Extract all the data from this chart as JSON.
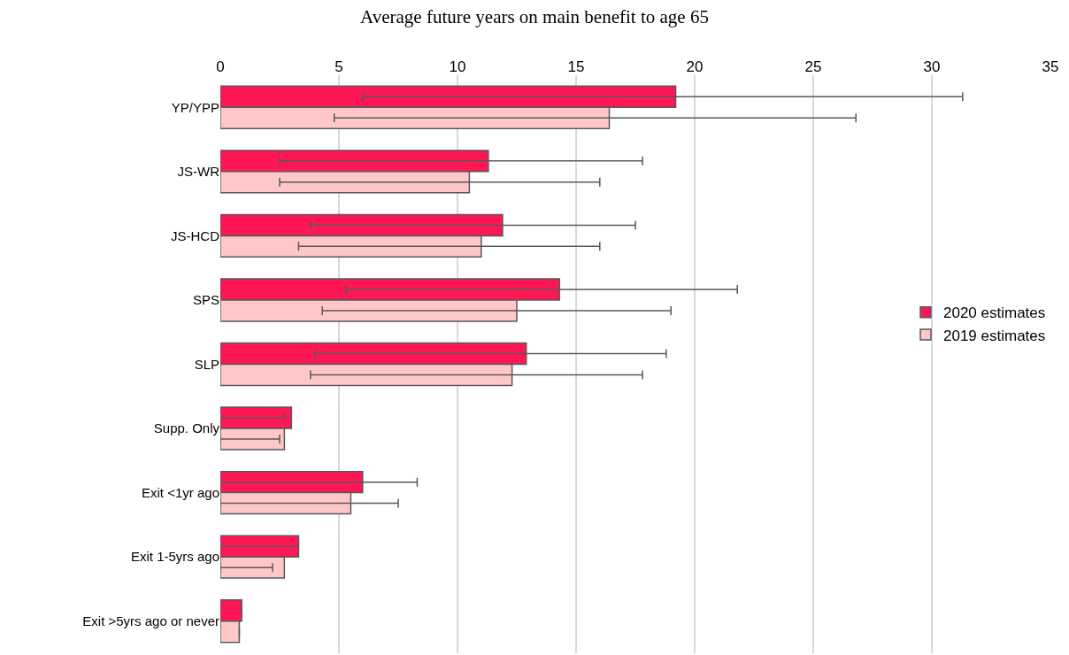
{
  "chart_data": {
    "type": "bar",
    "orientation": "horizontal",
    "title": "Average future years on main benefit to age 65",
    "categories": [
      "YP/YPP",
      "JS-WR",
      "JS-HCD",
      "SPS",
      "SLP",
      "Supp. Only",
      "Exit <1yr ago",
      "Exit 1-5yrs ago",
      "Exit >5yrs ago or never"
    ],
    "series": [
      {
        "name": "2020 estimates",
        "color": "#ff1654",
        "values": [
          19.2,
          11.3,
          11.9,
          14.3,
          12.9,
          3.0,
          6.0,
          3.3,
          0.9
        ],
        "errors": [
          [
            6.0,
            31.3
          ],
          [
            2.5,
            17.8
          ],
          [
            3.8,
            17.5
          ],
          [
            5.3,
            21.8
          ],
          [
            4.0,
            18.8
          ],
          [
            0,
            2.7
          ],
          [
            0,
            8.3
          ],
          [
            0,
            3.3
          ],
          null
        ]
      },
      {
        "name": "2019 estimates",
        "color": "#ffc7c7",
        "values": [
          16.4,
          10.5,
          11.0,
          12.5,
          12.3,
          2.7,
          5.5,
          2.7,
          0.8
        ],
        "errors": [
          [
            4.8,
            26.8
          ],
          [
            2.5,
            16.0
          ],
          [
            3.3,
            16.0
          ],
          [
            4.3,
            19.0
          ],
          [
            3.8,
            17.8
          ],
          [
            0,
            2.5
          ],
          [
            0,
            7.5
          ],
          [
            0,
            2.2
          ],
          null
        ]
      }
    ],
    "xlim": [
      0,
      35
    ],
    "xticks": [
      0,
      5,
      10,
      15,
      20,
      25,
      30,
      35
    ],
    "grid": "x",
    "legend": "right"
  }
}
